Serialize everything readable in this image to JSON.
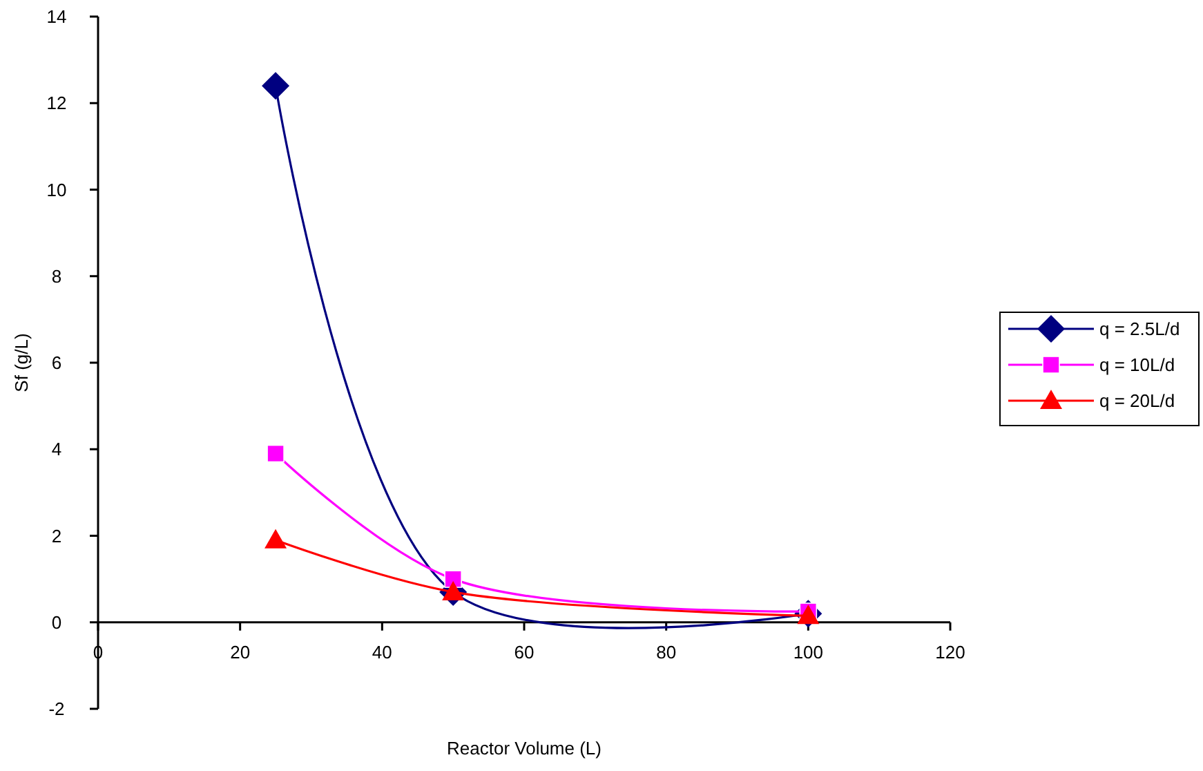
{
  "chart_data": {
    "type": "line",
    "xlabel": "Reactor Volume (L)",
    "ylabel": "Sf (g/L)",
    "x": [
      25,
      50,
      100
    ],
    "series": [
      {
        "name": "q = 2.5L/d",
        "color": "#000080",
        "marker": "diamond",
        "values": [
          12.4,
          0.7,
          0.2
        ]
      },
      {
        "name": "q = 10L/d",
        "color": "#ff00ff",
        "marker": "square",
        "values": [
          3.9,
          1.0,
          0.25
        ]
      },
      {
        "name": "q = 20L/d",
        "color": "#ff0000",
        "marker": "triangle",
        "values": [
          1.9,
          0.7,
          0.15
        ]
      }
    ],
    "xlim": [
      0,
      120
    ],
    "xticks": [
      0,
      20,
      40,
      60,
      80,
      100,
      120
    ],
    "ylim": [
      -2,
      14
    ],
    "yticks": [
      -2,
      0,
      2,
      4,
      6,
      8,
      10,
      12,
      14
    ],
    "grid": false,
    "legend": "right",
    "line_style": "solid"
  }
}
